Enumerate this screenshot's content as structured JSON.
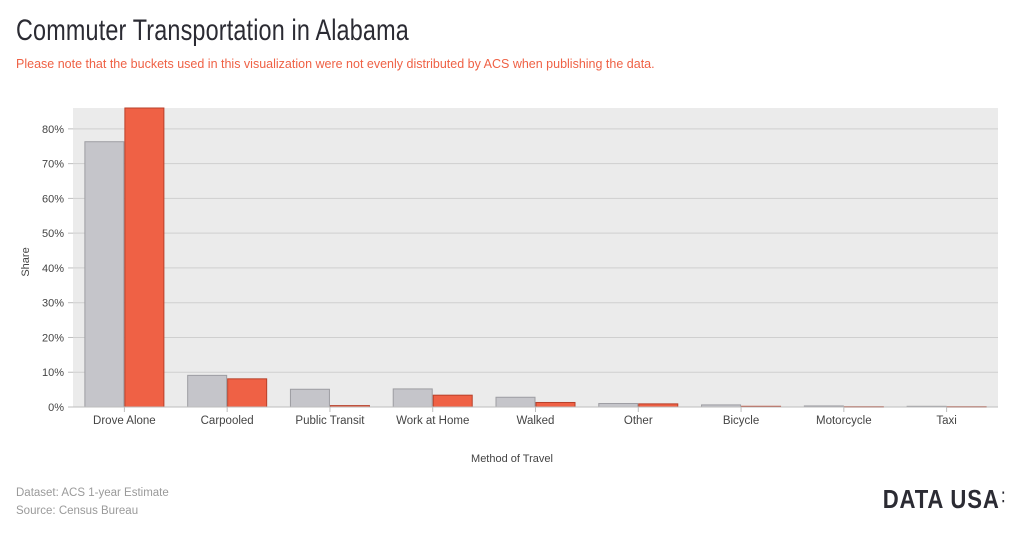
{
  "header": {
    "title": "Commuter Transportation in Alabama",
    "subtitle": "Please note that the buckets used in this visualization were not evenly distributed by ACS when publishing the data."
  },
  "footer": {
    "dataset": "Dataset: ACS 1-year Estimate",
    "source": "Source: Census Bureau",
    "logo": "DATA USA",
    "logo_mark": "⁚"
  },
  "colors": {
    "plot_background": "#ebebeb",
    "grid": "#cfcfcf",
    "series_gray": "#c5c5ca",
    "series_gray_stroke": "#9d9da2",
    "series_red": "#ef6145",
    "series_red_stroke": "#b8402a",
    "axis_text": "#444444"
  },
  "chart_data": {
    "type": "bar",
    "title": "Commuter Transportation in Alabama",
    "xlabel": "Method of Travel",
    "ylabel": "Share",
    "ylim": [
      0,
      86
    ],
    "grid": true,
    "yticks": [
      0,
      10,
      20,
      30,
      40,
      50,
      60,
      70,
      80
    ],
    "ytick_labels": [
      "0%",
      "10%",
      "20%",
      "30%",
      "40%",
      "50%",
      "60%",
      "70%",
      "80%"
    ],
    "categories": [
      "Drove Alone",
      "Carpooled",
      "Public Transit",
      "Work at Home",
      "Walked",
      "Other",
      "Bicycle",
      "Motorcycle",
      "Taxi"
    ],
    "series": [
      {
        "values": [
          76.3,
          9.1,
          5.1,
          5.2,
          2.8,
          1.0,
          0.6,
          0.3,
          0.2
        ]
      },
      {
        "values": [
          86.0,
          8.1,
          0.4,
          3.4,
          1.3,
          0.9,
          0.2,
          0.1,
          0.1
        ]
      }
    ]
  }
}
